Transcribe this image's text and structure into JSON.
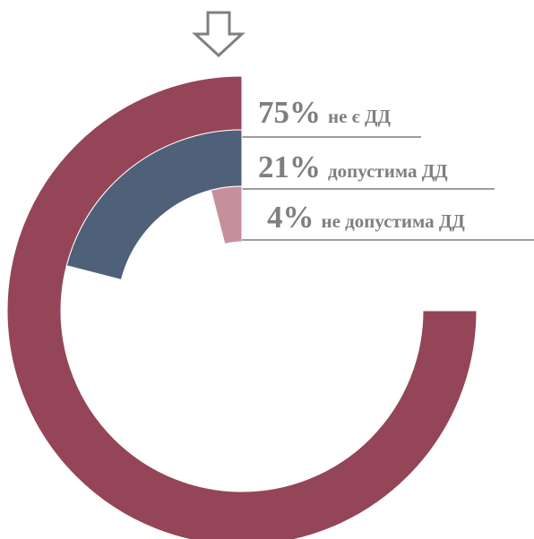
{
  "chart_data": {
    "type": "radial_bar",
    "categories": [
      "не є ДД",
      "допустима ДД",
      "не допустима ДД"
    ],
    "values": [
      75,
      21,
      4
    ],
    "value_labels": [
      "75%",
      "21%",
      "4%"
    ],
    "colors": [
      "#954558",
      "#4f6079",
      "#c78f9c"
    ],
    "ylim": [
      0,
      100
    ]
  }
}
